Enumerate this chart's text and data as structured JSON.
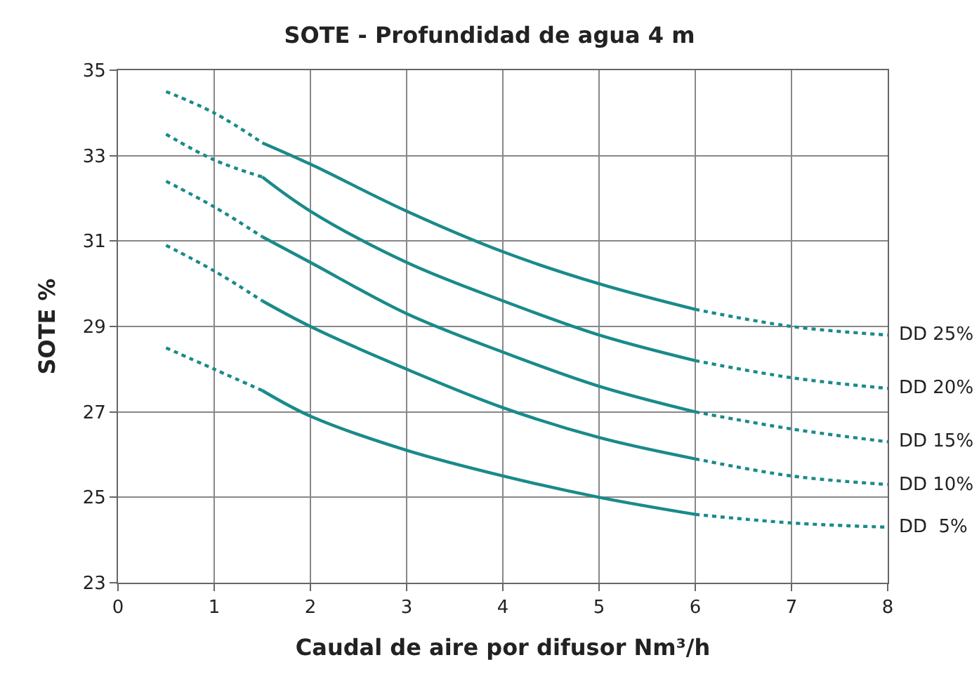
{
  "chart_data": {
    "type": "line",
    "title": "SOTE - Profundidad de agua 4 m",
    "xlabel": "Caudal de aire por difusor Nm³/h",
    "ylabel": "SOTE %",
    "xlim": [
      0,
      8
    ],
    "xticks": [
      0,
      1,
      2,
      3,
      4,
      5,
      6,
      7,
      8
    ],
    "ylim": [
      23,
      35
    ],
    "yticks": [
      23,
      25,
      27,
      29,
      31,
      33,
      35
    ],
    "grid": true,
    "marker": "none",
    "series": [
      {
        "color": "#1a8a8a",
        "line_style": "dotted",
        "x": [
          0.5,
          1,
          1.5
        ],
        "values": [
          34.5,
          34.0,
          33.3
        ]
      },
      {
        "color": "#1a8a8a",
        "line_style": "solid",
        "x": [
          1.5,
          2,
          3,
          4,
          5,
          6
        ],
        "values": [
          33.3,
          32.8,
          31.7,
          30.75,
          30.0,
          29.4
        ]
      },
      {
        "name": "DD 25%",
        "color": "#1a8a8a",
        "line_style": "dotted",
        "x": [
          6,
          7,
          8
        ],
        "values": [
          29.4,
          29.0,
          28.8
        ]
      },
      {
        "color": "#1a8a8a",
        "line_style": "dotted",
        "x": [
          0.5,
          1,
          1.5
        ],
        "values": [
          33.5,
          32.9,
          32.5
        ]
      },
      {
        "color": "#1a8a8a",
        "line_style": "solid",
        "x": [
          1.5,
          2,
          3,
          4,
          5,
          6
        ],
        "values": [
          32.5,
          31.7,
          30.5,
          29.6,
          28.8,
          28.2
        ]
      },
      {
        "name": "DD 20%",
        "color": "#1a8a8a",
        "line_style": "dotted",
        "x": [
          6,
          7,
          8
        ],
        "values": [
          28.2,
          27.8,
          27.55
        ]
      },
      {
        "color": "#1a8a8a",
        "line_style": "dotted",
        "x": [
          0.5,
          1,
          1.5
        ],
        "values": [
          32.4,
          31.8,
          31.1
        ]
      },
      {
        "color": "#1a8a8a",
        "line_style": "solid",
        "x": [
          1.5,
          2,
          3,
          4,
          5,
          6
        ],
        "values": [
          31.1,
          30.5,
          29.3,
          28.4,
          27.6,
          27.0
        ]
      },
      {
        "name": "DD 15%",
        "color": "#1a8a8a",
        "line_style": "dotted",
        "x": [
          6,
          7,
          8
        ],
        "values": [
          27.0,
          26.6,
          26.3
        ]
      },
      {
        "color": "#1a8a8a",
        "line_style": "dotted",
        "x": [
          0.5,
          1,
          1.5
        ],
        "values": [
          30.9,
          30.3,
          29.6
        ]
      },
      {
        "color": "#1a8a8a",
        "line_style": "solid",
        "x": [
          1.5,
          2,
          3,
          4,
          5,
          6
        ],
        "values": [
          29.6,
          29.0,
          28.0,
          27.1,
          26.4,
          25.9
        ]
      },
      {
        "name": "DD 10%",
        "color": "#1a8a8a",
        "line_style": "dotted",
        "x": [
          6,
          7,
          8
        ],
        "values": [
          25.9,
          25.5,
          25.3
        ]
      },
      {
        "color": "#1a8a8a",
        "line_style": "dotted",
        "x": [
          0.5,
          1,
          1.5
        ],
        "values": [
          28.5,
          28.0,
          27.5
        ]
      },
      {
        "color": "#1a8a8a",
        "line_style": "solid",
        "x": [
          1.5,
          2,
          3,
          4,
          5,
          6
        ],
        "values": [
          27.5,
          26.9,
          26.1,
          25.5,
          25.0,
          24.6
        ]
      },
      {
        "name": "DD  5%",
        "color": "#1a8a8a",
        "line_style": "dotted",
        "x": [
          6,
          7,
          8
        ],
        "values": [
          24.6,
          24.4,
          24.3
        ]
      }
    ]
  }
}
